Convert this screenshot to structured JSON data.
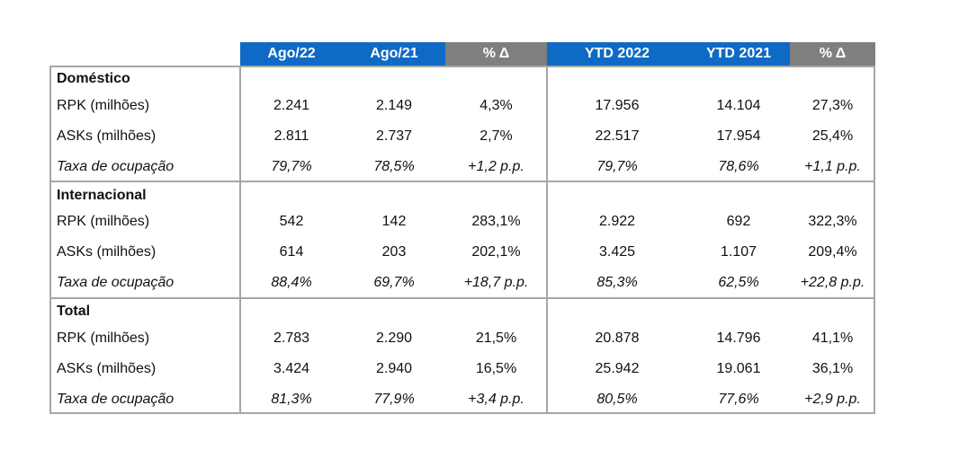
{
  "columns": [
    "Ago/22",
    "Ago/21",
    "% Δ",
    "YTD 2022",
    "YTD 2021",
    "% Δ"
  ],
  "sections": [
    {
      "title": "Doméstico",
      "rows": [
        {
          "label": "RPK (milhões)",
          "values": [
            "2.241",
            "2.149",
            "4,3%",
            "17.956",
            "14.104",
            "27,3%"
          ]
        },
        {
          "label": "ASKs (milhões)",
          "values": [
            "2.811",
            "2.737",
            "2,7%",
            "22.517",
            "17.954",
            "25,4%"
          ]
        },
        {
          "label": "Taxa de ocupação",
          "values": [
            "79,7%",
            "78,5%",
            "+1,2 p.p.",
            "79,7%",
            "78,6%",
            "+1,1 p.p."
          ]
        }
      ]
    },
    {
      "title": "Internacional",
      "rows": [
        {
          "label": "RPK (milhões)",
          "values": [
            "542",
            "142",
            "283,1%",
            "2.922",
            "692",
            "322,3%"
          ]
        },
        {
          "label": "ASKs (milhões)",
          "values": [
            "614",
            "203",
            "202,1%",
            "3.425",
            "1.107",
            "209,4%"
          ]
        },
        {
          "label": "Taxa de ocupação",
          "values": [
            "88,4%",
            "69,7%",
            "+18,7 p.p.",
            "85,3%",
            "62,5%",
            "+22,8 p.p."
          ]
        }
      ]
    },
    {
      "title": "Total",
      "rows": [
        {
          "label": "RPK (milhões)",
          "values": [
            "2.783",
            "2.290",
            "21,5%",
            "20.878",
            "14.796",
            "41,1%"
          ]
        },
        {
          "label": "ASKs (milhões)",
          "values": [
            "3.424",
            "2.940",
            "16,5%",
            "25.942",
            "19.061",
            "36,1%"
          ]
        },
        {
          "label": "Taxa de ocupação",
          "values": [
            "81,3%",
            "77,9%",
            "+3,4 p.p.",
            "80,5%",
            "77,6%",
            "+2,9 p.p."
          ]
        }
      ]
    }
  ],
  "colors": {
    "header_blue": "#0e6ac4",
    "header_gray": "#7f7f7f",
    "border": "#a6a6a6"
  }
}
